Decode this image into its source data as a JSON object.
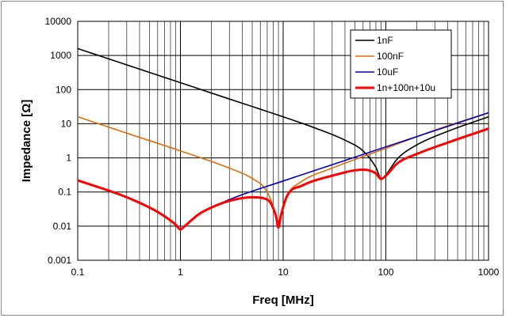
{
  "chart_data": {
    "type": "line",
    "xscale": "log",
    "yscale": "log",
    "xlabel": "Freq [MHz]",
    "ylabel": "Impedance [Ω]",
    "xlim": [
      0.1,
      1000
    ],
    "ylim": [
      0.001,
      10000
    ],
    "xticks": [
      "0.1",
      "1",
      "10",
      "100",
      "1000"
    ],
    "yticks": [
      "10000",
      "1000",
      "100",
      "10",
      "1",
      "0.1",
      "0.01",
      "0.001"
    ],
    "grid": true,
    "legend_position": "top-right",
    "series": [
      {
        "name": "1nF",
        "color": "#000000",
        "x": [
          0.1,
          0.3,
          1,
          3,
          10,
          20,
          40,
          60,
          80,
          90,
          100,
          130,
          200,
          400,
          1000
        ],
        "y": [
          1600,
          530,
          160,
          53,
          16,
          7.7,
          3.3,
          1.6,
          0.53,
          0.25,
          0.32,
          0.95,
          2.4,
          6.0,
          16
        ]
      },
      {
        "name": "100nF",
        "color": "#e46c0a",
        "x": [
          0.1,
          0.3,
          1,
          3,
          5,
          7,
          8.5,
          9,
          9.5,
          11,
          15,
          30,
          100,
          300,
          1000
        ],
        "y": [
          16,
          5.3,
          1.6,
          0.5,
          0.25,
          0.1,
          0.02,
          0.009,
          0.02,
          0.08,
          0.2,
          0.5,
          1.9,
          6.5,
          21
        ]
      },
      {
        "name": "10uF",
        "color": "#0000c0",
        "x": [
          0.1,
          0.3,
          0.6,
          0.9,
          1.0,
          1.1,
          1.5,
          3,
          10,
          30,
          100,
          300,
          1000
        ],
        "y": [
          0.22,
          0.07,
          0.026,
          0.011,
          0.008,
          0.01,
          0.022,
          0.06,
          0.21,
          0.63,
          2.1,
          6.3,
          21
        ]
      },
      {
        "name": "1n+100n+10u",
        "color": "#ff0000",
        "x": [
          0.1,
          0.3,
          0.6,
          0.9,
          1.0,
          1.1,
          1.5,
          2,
          3,
          5,
          7,
          8.5,
          9,
          9.5,
          11,
          15,
          30,
          60,
          80,
          90,
          100,
          130,
          200,
          400,
          1000
        ],
        "y": [
          0.22,
          0.07,
          0.026,
          0.011,
          0.008,
          0.01,
          0.022,
          0.035,
          0.055,
          0.07,
          0.06,
          0.02,
          0.009,
          0.02,
          0.08,
          0.15,
          0.3,
          0.45,
          0.35,
          0.24,
          0.3,
          0.7,
          1.3,
          2.8,
          7.2
        ]
      }
    ]
  }
}
